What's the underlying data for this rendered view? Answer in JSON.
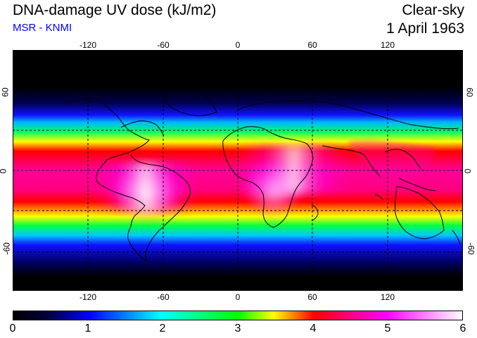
{
  "header": {
    "title": "DNA-damage UV dose (kJ/m2)",
    "subtitle": "MSR - KNMI",
    "condition": "Clear-sky",
    "date": "1 April 1963"
  },
  "map": {
    "type": "global-uv-dose-field",
    "longitude_range": [
      -180,
      180
    ],
    "latitude_range": [
      -90,
      90
    ],
    "longitude_ticks": [
      -120,
      -60,
      0,
      60,
      120
    ],
    "longitude_tick_labels": [
      "-120",
      "-60",
      "0",
      "60",
      "120"
    ],
    "latitude_ticks": [
      60,
      0,
      -60
    ],
    "latitude_tick_labels": [
      "60",
      "0",
      "-60"
    ],
    "grid": "dashed",
    "background_color": "#000000",
    "coastline_color": "#000000"
  },
  "colorbar": {
    "min": 0,
    "max": 6,
    "tick_labels": [
      "0",
      "1",
      "2",
      "3",
      "4",
      "5",
      "6"
    ],
    "colors": [
      "#000000",
      "#000050",
      "#0000ff",
      "#00ffff",
      "#00ff00",
      "#ffff00",
      "#ff0000",
      "#ff00ff",
      "#ffffff"
    ]
  }
}
